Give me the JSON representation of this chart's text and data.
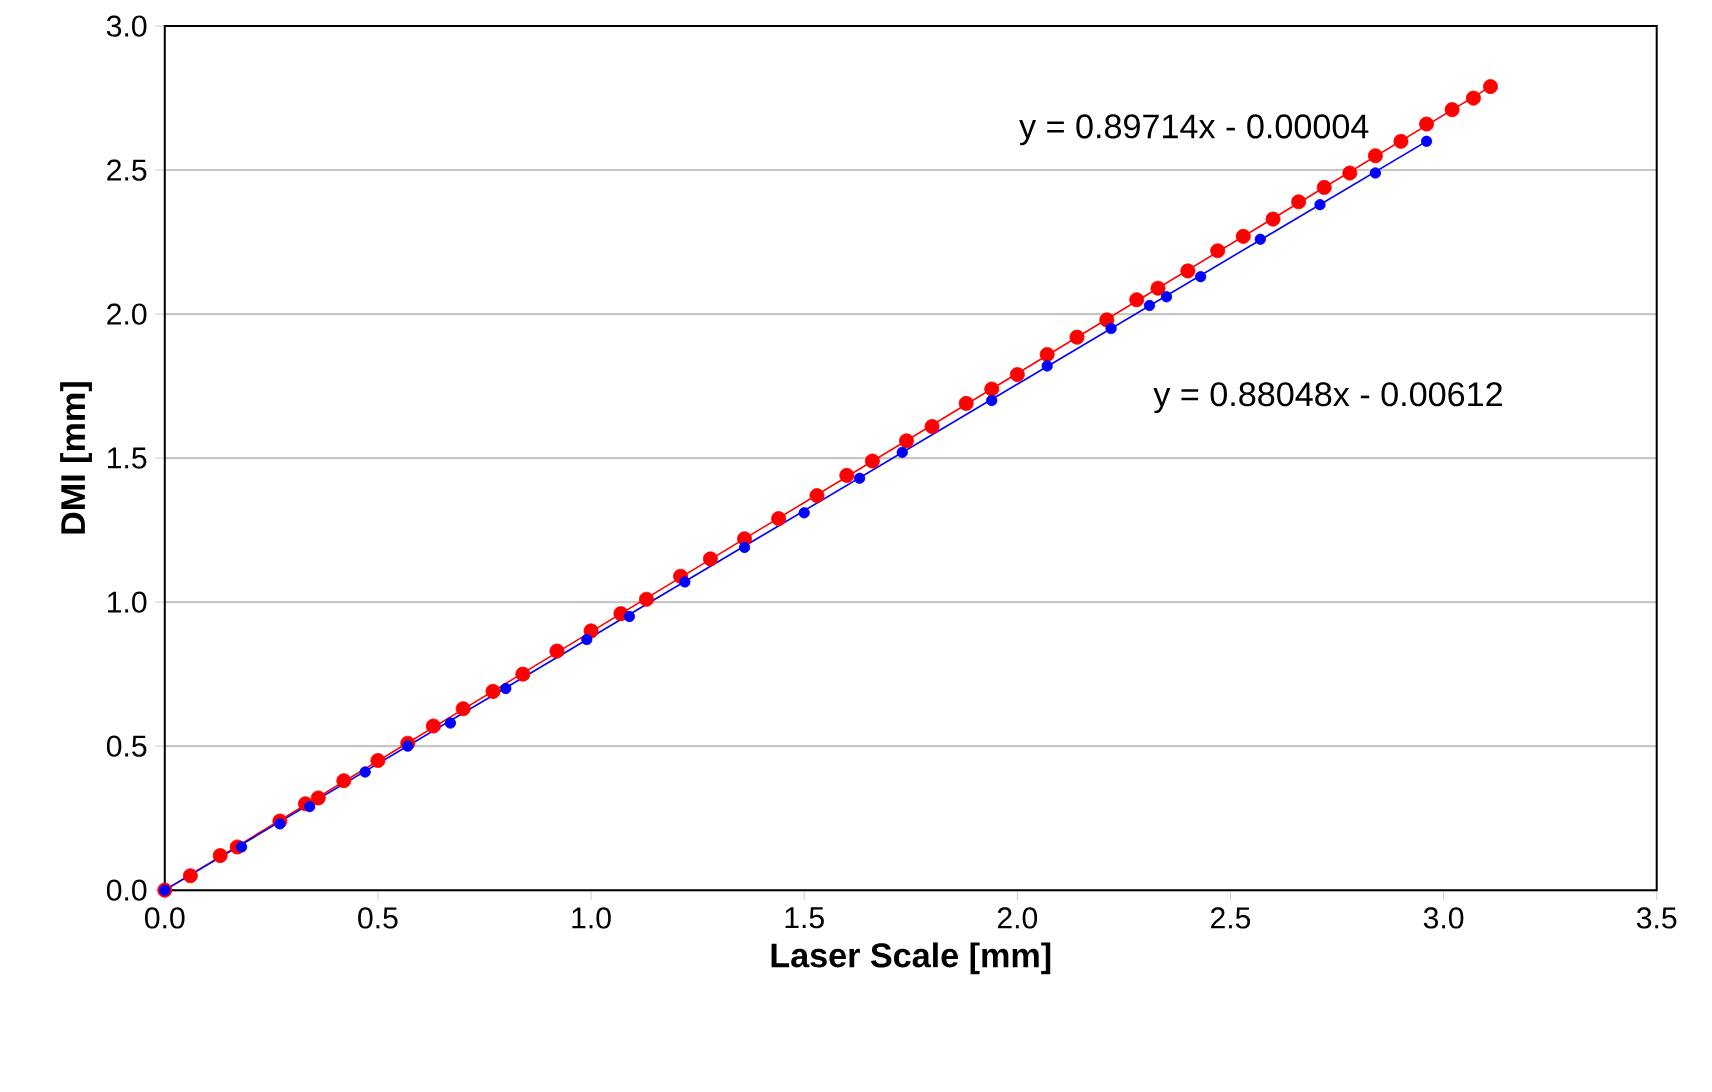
{
  "chart_data": {
    "type": "scatter",
    "xlabel": "Laser Scale [mm]",
    "ylabel": "DMI [mm]",
    "xlim": [
      0,
      3.5
    ],
    "ylim": [
      0,
      3.0
    ],
    "xticks": [
      {
        "value": 0,
        "label": "0.0"
      },
      {
        "value": 0.5,
        "label": "0.5"
      },
      {
        "value": 1,
        "label": "1.0"
      },
      {
        "value": 1.5,
        "label": "1.5"
      },
      {
        "value": 2,
        "label": "2.0"
      },
      {
        "value": 2.5,
        "label": "2.5"
      },
      {
        "value": 3,
        "label": "3.0"
      },
      {
        "value": 3.5,
        "label": "3.5"
      }
    ],
    "yticks": [
      {
        "value": 0,
        "label": "0.0"
      },
      {
        "value": 0.5,
        "label": "0.5"
      },
      {
        "value": 1,
        "label": "1.0"
      },
      {
        "value": 1.5,
        "label": "1.5"
      },
      {
        "value": 2,
        "label": "2.0"
      },
      {
        "value": 2.5,
        "label": "2.5"
      },
      {
        "value": 3,
        "label": "3.0"
      }
    ],
    "grid": "y",
    "marker": "circle",
    "series": [
      {
        "color": "#ff0000",
        "x": [
          0,
          0.06,
          0.13,
          0.17,
          0.27,
          0.33,
          0.36,
          0.42,
          0.5,
          0.57,
          0.63,
          0.7,
          0.77,
          0.84,
          0.92,
          1.0,
          1.07,
          1.13,
          1.21,
          1.28,
          1.36,
          1.44,
          1.53,
          1.6,
          1.66,
          1.74,
          1.8,
          1.88,
          1.94,
          2.0,
          2.07,
          2.14,
          2.21,
          2.28,
          2.33,
          2.4,
          2.47,
          2.53,
          2.6,
          2.66,
          2.72,
          2.78,
          2.84,
          2.9,
          2.96,
          3.02,
          3.07,
          3.11
        ],
        "values": [
          0,
          0.05,
          0.12,
          0.15,
          0.24,
          0.3,
          0.32,
          0.38,
          0.45,
          0.51,
          0.57,
          0.63,
          0.69,
          0.75,
          0.83,
          0.9,
          0.96,
          1.01,
          1.09,
          1.15,
          1.22,
          1.29,
          1.37,
          1.44,
          1.49,
          1.56,
          1.61,
          1.69,
          1.74,
          1.79,
          1.86,
          1.92,
          1.98,
          2.05,
          2.09,
          2.15,
          2.22,
          2.27,
          2.33,
          2.39,
          2.44,
          2.49,
          2.55,
          2.6,
          2.66,
          2.71,
          2.75,
          2.79
        ]
      },
      {
        "color": "#0000ff",
        "x": [
          0,
          0.18,
          0.27,
          0.34,
          0.47,
          0.57,
          0.67,
          0.8,
          0.99,
          1.09,
          1.22,
          1.36,
          1.5,
          1.63,
          1.73,
          1.94,
          2.07,
          2.22,
          2.31,
          2.35,
          2.43,
          2.57,
          2.71,
          2.84,
          2.96
        ],
        "values": [
          0,
          0.15,
          0.23,
          0.29,
          0.41,
          0.5,
          0.58,
          0.7,
          0.87,
          0.95,
          1.07,
          1.19,
          1.31,
          1.43,
          1.52,
          1.7,
          1.82,
          1.95,
          2.03,
          2.06,
          2.13,
          2.26,
          2.38,
          2.49,
          2.6
        ]
      },
      {
        "type": "line",
        "color": "#ff0000",
        "marker": "none",
        "x": [
          0,
          3.11
        ],
        "values": [
          0,
          2.79
        ]
      },
      {
        "type": "line",
        "color": "#0000ff",
        "marker": "none",
        "x": [
          0,
          2.96
        ],
        "values": [
          0,
          2.6
        ]
      }
    ],
    "annotations": [
      "y = 0.89714x - 0.00004",
      "y = 0.88048x - 0.00612"
    ]
  }
}
